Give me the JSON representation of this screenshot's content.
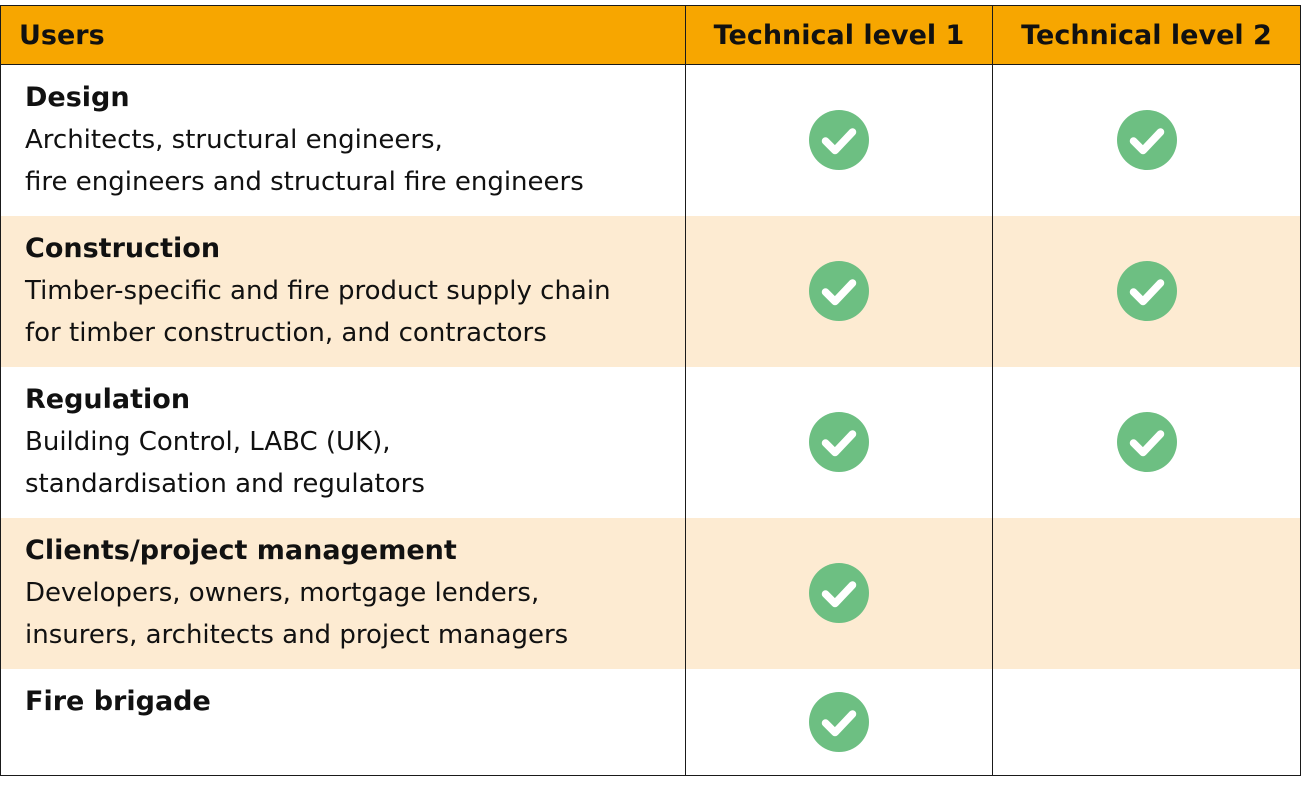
{
  "header": {
    "users": "Users",
    "level1": "Technical level 1",
    "level2": "Technical level 2"
  },
  "rows": [
    {
      "name": "Design",
      "description": "Architects, structural engineers,\nfire engineers and structural fire engineers",
      "level1": true,
      "level2": true
    },
    {
      "name": "Construction",
      "description": "Timber-specific and fire product supply chain\nfor timber construction, and contractors",
      "level1": true,
      "level2": true
    },
    {
      "name": "Regulation",
      "description": "Building Control, LABC (UK),\nstandardisation and regulators",
      "level1": true,
      "level2": true
    },
    {
      "name": "Clients/project management",
      "description": "Developers, owners, mortgage lenders,\ninsurers, architects and project managers",
      "level1": true,
      "level2": false
    },
    {
      "name": "Fire brigade",
      "description": "",
      "level1": true,
      "level2": false
    }
  ],
  "icons": {
    "check": "check-circle-icon"
  },
  "colors": {
    "header_bg": "#f7a600",
    "shaded_row_bg": "#fdebd2",
    "check_green": "#6dbf82"
  }
}
